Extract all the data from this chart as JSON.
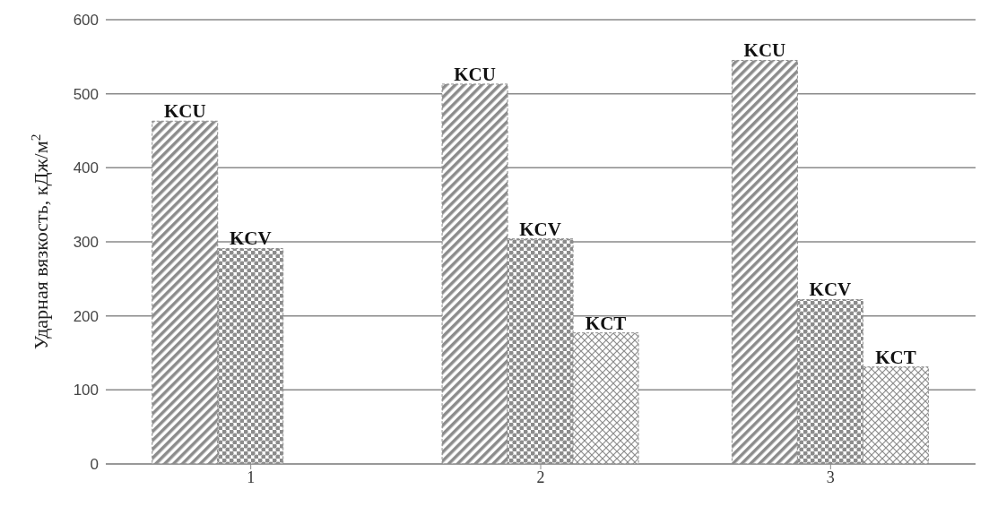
{
  "chart_data": {
    "type": "bar",
    "ylabel": "Ударная вязкость, кДж/м$^{2}$",
    "categories": [
      "1",
      "2",
      "3"
    ],
    "series": [
      {
        "name": "KCU",
        "color": "#8c8c8c",
        "values": [
          463,
          513,
          545
        ]
      },
      {
        "name": "KCV",
        "color": "#8c8c8c",
        "values": [
          291,
          304,
          222
        ]
      },
      {
        "name": "KCT",
        "color": "#8c8c8c",
        "values": [
          null,
          177,
          131
        ]
      }
    ],
    "ylim": [
      0,
      600
    ],
    "yticks": [
      0,
      100,
      200,
      300,
      400,
      500,
      600
    ],
    "grid": "y",
    "legend": false
  }
}
